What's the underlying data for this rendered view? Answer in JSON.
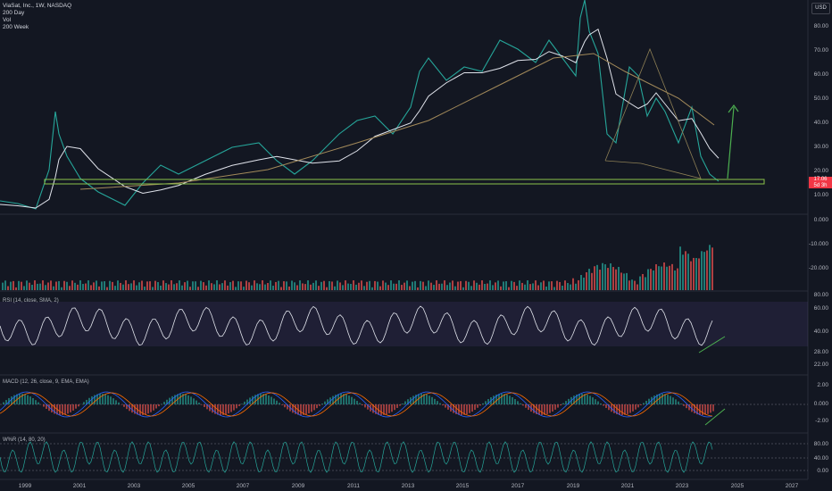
{
  "legend": {
    "title": "ViaSat, Inc., 1W, NASDAQ",
    "line2": "200 Day",
    "line3": "Vol",
    "line4": "200 Week"
  },
  "currency": "USD",
  "price_tag": {
    "price": "17.06",
    "countdown": "5d 3h"
  },
  "price_axis": [
    "80.00",
    "70.00",
    "60.00",
    "50.00",
    "40.00",
    "30.00",
    "20.00",
    "10.00"
  ],
  "vol_axis": [
    "0.000",
    "-10.000",
    "-20.000"
  ],
  "rsi": {
    "label": "RSI (14, close, SMA, 2)",
    "axis": [
      "80.00",
      "60.00",
      "40.00",
      "28.00",
      "22.00"
    ]
  },
  "macd": {
    "label": "MACD (12, 26, close, 9, EMA, EMA)",
    "axis": [
      "2.00",
      "0.000",
      "-2.00"
    ]
  },
  "wpr": {
    "label": "W%R (14, 80, 20)",
    "axis": [
      "80.00",
      "40.00",
      "0.00"
    ]
  },
  "time_axis": [
    "1999",
    "2001",
    "2003",
    "2005",
    "2007",
    "2009",
    "2011",
    "2013",
    "2015",
    "2017",
    "2019",
    "2021",
    "2023",
    "2025",
    "2027"
  ],
  "colors": {
    "bg": "#131722",
    "up": "#26a69a",
    "down": "#ef5350",
    "ma_white": "#e0e3eb",
    "ma_tan": "#a38a5a",
    "support": "#8bc34a",
    "arrow": "#4caf50",
    "rsi_band": "#7e57c2"
  }
}
